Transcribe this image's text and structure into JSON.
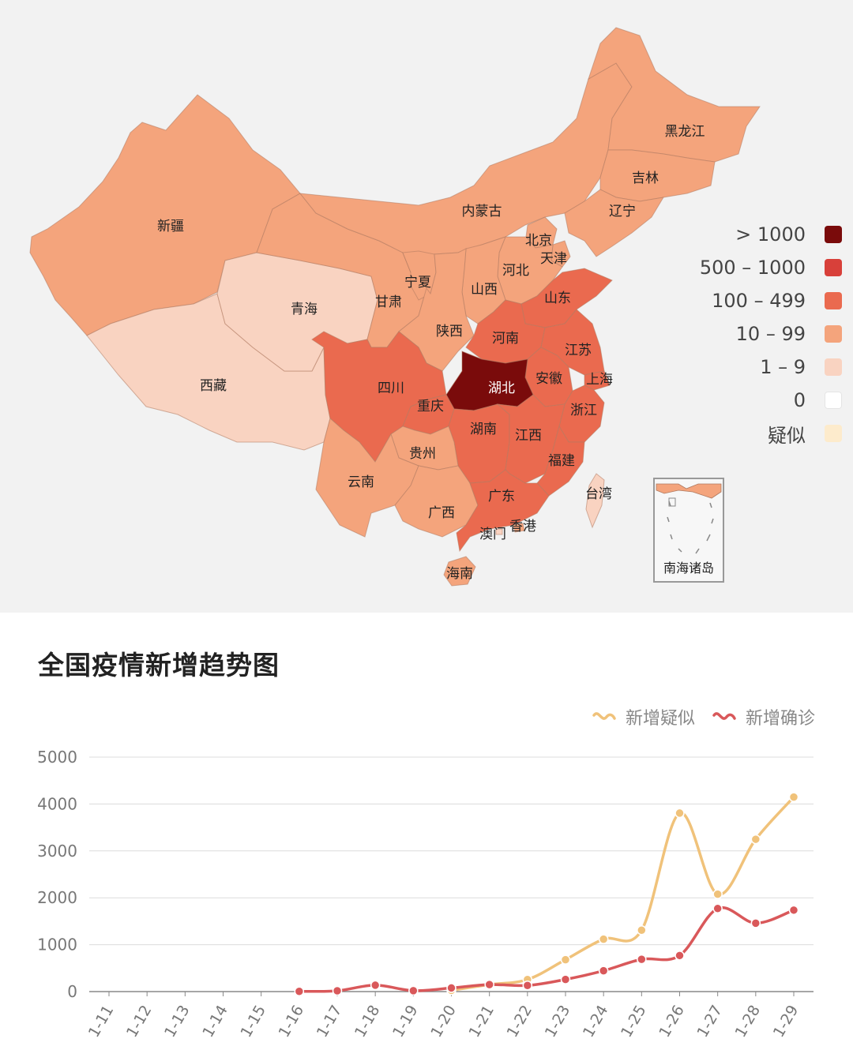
{
  "map": {
    "provinces": [
      {
        "name": "新疆",
        "bin": "10 – 99"
      },
      {
        "name": "西藏",
        "bin": "1 – 9"
      },
      {
        "name": "青海",
        "bin": "1 – 9"
      },
      {
        "name": "甘肃",
        "bin": "10 – 99"
      },
      {
        "name": "内蒙古",
        "bin": "10 – 99"
      },
      {
        "name": "黑龙江",
        "bin": "10 – 99"
      },
      {
        "name": "吉林",
        "bin": "10 – 99"
      },
      {
        "name": "辽宁",
        "bin": "10 – 99"
      },
      {
        "name": "北京",
        "bin": "10 – 99"
      },
      {
        "name": "天津",
        "bin": "10 – 99"
      },
      {
        "name": "河北",
        "bin": "10 – 99"
      },
      {
        "name": "山西",
        "bin": "10 – 99"
      },
      {
        "name": "宁夏",
        "bin": "10 – 99"
      },
      {
        "name": "陕西",
        "bin": "10 – 99"
      },
      {
        "name": "山东",
        "bin": "100 – 499"
      },
      {
        "name": "河南",
        "bin": "100 – 499"
      },
      {
        "name": "江苏",
        "bin": "100 – 499"
      },
      {
        "name": "安徽",
        "bin": "100 – 499"
      },
      {
        "name": "上海",
        "bin": "100 – 499"
      },
      {
        "name": "湖北",
        "bin": "> 1000"
      },
      {
        "name": "四川",
        "bin": "100 – 499"
      },
      {
        "name": "重庆",
        "bin": "100 – 499"
      },
      {
        "name": "浙江",
        "bin": "100 – 499"
      },
      {
        "name": "湖南",
        "bin": "100 – 499"
      },
      {
        "name": "江西",
        "bin": "100 – 499"
      },
      {
        "name": "贵州",
        "bin": "10 – 99"
      },
      {
        "name": "云南",
        "bin": "10 – 99"
      },
      {
        "name": "福建",
        "bin": "100 – 499"
      },
      {
        "name": "广西",
        "bin": "10 – 99"
      },
      {
        "name": "广东",
        "bin": "100 – 499"
      },
      {
        "name": "台湾",
        "bin": "1 – 9"
      },
      {
        "name": "香港",
        "bin": "10 – 99"
      },
      {
        "name": "澳门",
        "bin": "1 – 9"
      },
      {
        "name": "海南",
        "bin": "10 – 99"
      }
    ],
    "inset_label": "南海诸岛"
  },
  "legend": {
    "items": [
      {
        "label": "> 1000",
        "color": "#7a0b0b"
      },
      {
        "label": "500 – 1000",
        "color": "#d8403a"
      },
      {
        "label": "100 – 499",
        "color": "#ea6a4f"
      },
      {
        "label": "10 – 99",
        "color": "#f4a47c"
      },
      {
        "label": "1 – 9",
        "color": "#f9d3c1"
      },
      {
        "label": "0",
        "color": "#ffffff"
      },
      {
        "label": "疑似",
        "color": "#fdebcc"
      }
    ]
  },
  "chart_title": "全国疫情新增趋势图",
  "chart_data": {
    "type": "line",
    "title": "全国疫情新增趋势图",
    "x": [
      "1-11",
      "1-12",
      "1-13",
      "1-14",
      "1-15",
      "1-16",
      "1-17",
      "1-18",
      "1-19",
      "1-20",
      "1-21",
      "1-22",
      "1-23",
      "1-24",
      "1-25",
      "1-26",
      "1-27",
      "1-28",
      "1-29"
    ],
    "ylim": [
      0,
      5000
    ],
    "yticks": [
      "0",
      "1000",
      "2000",
      "3000",
      "4000",
      "5000"
    ],
    "grid": true,
    "legend_position": "top-right",
    "series": [
      {
        "name": "新增疑似",
        "color": "#f0c27a",
        "values": [
          null,
          null,
          null,
          null,
          null,
          null,
          null,
          null,
          null,
          27,
          149,
          257,
          680,
          1118,
          1309,
          3806,
          2077,
          3248,
          4148
        ]
      },
      {
        "name": "新增确诊",
        "color": "#d9585a",
        "values": [
          null,
          null,
          null,
          null,
          null,
          4,
          17,
          136,
          19,
          77,
          149,
          131,
          259,
          444,
          688,
          769,
          1771,
          1459,
          1737
        ]
      }
    ]
  }
}
